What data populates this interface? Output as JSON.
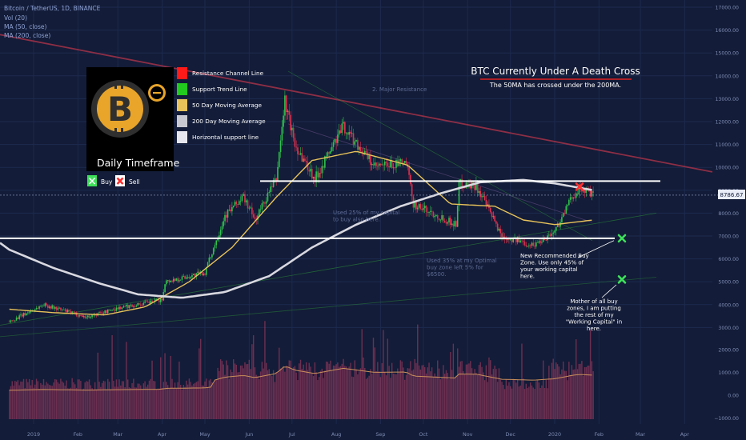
{
  "header": {
    "symbol_line": "Bitcoin / TetherUS, 1D, BINANCE",
    "indicators": [
      "Vol (20)",
      "MA (50, close)",
      "MA (200, close)"
    ]
  },
  "legend": {
    "logo_caption": "Daily Timeframe",
    "items": [
      {
        "label": "Resistance Channel Line",
        "color": "#ff1a1a"
      },
      {
        "label": "Support Trend Line",
        "color": "#22c91e"
      },
      {
        "label": "50 Day Moving Average",
        "color": "#e8c35a"
      },
      {
        "label": "200 Day Moving Average",
        "color": "#c8c8d0"
      },
      {
        "label": "Horizontal support line",
        "color": "#e6e6ee"
      }
    ],
    "buy_label": "Buy",
    "sell_label": "Sell"
  },
  "headline": {
    "title": "BTC Currently Under A Death Cross",
    "subtitle": "The 50MA has crossed under the 200MA."
  },
  "annotations": {
    "major_resistance": "2. Major Resistance",
    "used25": "Used 25% of my capital to buy also here.",
    "used35": "Used 35% at my Optimal buy zone left 5% for $6500.",
    "new_zone": "New Recommended Buy Zone. Use only 45% of your working capital here.",
    "mother_zone": "Mother of all buy zones, I am putting the rest of my \"Working Capital\" in here."
  },
  "price_label": "8786.67",
  "colors": {
    "background": "#131c38",
    "up": "#2fc34c",
    "down": "#e0304e",
    "ma50": "#e8c35a",
    "ma200": "#d8d8e0",
    "resistance": "#b8344a",
    "support_level": "#ffffff",
    "volume_ma": "#c98f5a",
    "volume_bar": "#b83f66",
    "buy_marker": "#3ee05a",
    "sell_marker": "#ff3030"
  },
  "chart_data": {
    "type": "candlestick",
    "y_axis": {
      "range": [
        2000,
        17000
      ],
      "ticks": [
        "17000.00",
        "16000.00",
        "15000.00",
        "14000.00",
        "13000.00",
        "12000.00",
        "11000.00",
        "10000.00",
        "9000.00",
        "8000.00",
        "7000.00",
        "6000.00",
        "5000.00",
        "4000.00",
        "3000.00"
      ]
    },
    "volume_axis": {
      "ticks": [
        "2000.00",
        "1000.00",
        "0.00",
        "−1000.00"
      ]
    },
    "x_axis": {
      "ticks": [
        "2019",
        "Feb",
        "Mar",
        "Apr",
        "May",
        "Jun",
        "Jul",
        "Aug",
        "Sep",
        "Oct",
        "Nov",
        "Dec",
        "2020",
        "Feb",
        "Mar",
        "Apr"
      ]
    },
    "price_keypoints": [
      [
        "2018-12-15",
        3250
      ],
      [
        "2019-01-08",
        4000
      ],
      [
        "2019-02-07",
        3450
      ],
      [
        "2019-03-01",
        3850
      ],
      [
        "2019-04-01",
        4200
      ],
      [
        "2019-04-03",
        5000
      ],
      [
        "2019-05-01",
        5400
      ],
      [
        "2019-05-15",
        7900
      ],
      [
        "2019-05-28",
        8700
      ],
      [
        "2019-06-05",
        7700
      ],
      [
        "2019-06-20",
        9500
      ],
      [
        "2019-06-26",
        12900
      ],
      [
        "2019-07-03",
        11000
      ],
      [
        "2019-07-17",
        9500
      ],
      [
        "2019-08-06",
        11800
      ],
      [
        "2019-08-28",
        10000
      ],
      [
        "2019-09-19",
        10200
      ],
      [
        "2019-09-24",
        8400
      ],
      [
        "2019-10-24",
        7500
      ],
      [
        "2019-10-26",
        9300
      ],
      [
        "2019-11-07",
        9200
      ],
      [
        "2019-11-25",
        7000
      ],
      [
        "2019-12-17",
        6600
      ],
      [
        "2020-01-01",
        7200
      ],
      [
        "2020-01-14",
        8800
      ],
      [
        "2020-01-19",
        9100
      ],
      [
        "2020-01-28",
        8786
      ]
    ],
    "series": [
      {
        "name": "MA (50, close)",
        "keypoints": [
          [
            "2018-12-15",
            3800
          ],
          [
            "2019-01-15",
            3650
          ],
          [
            "2019-02-20",
            3550
          ],
          [
            "2019-03-20",
            3900
          ],
          [
            "2019-04-20",
            5000
          ],
          [
            "2019-05-20",
            6500
          ],
          [
            "2019-06-20",
            8700
          ],
          [
            "2019-07-15",
            10300
          ],
          [
            "2019-08-15",
            10700
          ],
          [
            "2019-09-20",
            10100
          ],
          [
            "2019-10-20",
            8400
          ],
          [
            "2019-11-20",
            8300
          ],
          [
            "2019-12-10",
            7700
          ],
          [
            "2020-01-01",
            7500
          ],
          [
            "2020-01-28",
            7700
          ]
        ]
      },
      {
        "name": "MA (200, close)",
        "keypoints": [
          [
            "2018-12-15",
            6400
          ],
          [
            "2019-01-15",
            5600
          ],
          [
            "2019-02-15",
            4950
          ],
          [
            "2019-03-15",
            4450
          ],
          [
            "2019-04-15",
            4300
          ],
          [
            "2019-05-15",
            4550
          ],
          [
            "2019-06-15",
            5250
          ],
          [
            "2019-07-15",
            6500
          ],
          [
            "2019-08-15",
            7500
          ],
          [
            "2019-09-15",
            8300
          ],
          [
            "2019-10-15",
            8900
          ],
          [
            "2019-11-10",
            9350
          ],
          [
            "2019-12-10",
            9450
          ],
          [
            "2020-01-01",
            9300
          ],
          [
            "2020-01-28",
            9000
          ]
        ]
      }
    ],
    "horizontal_levels": [
      9400,
      6900
    ],
    "buy_markers": [
      6900,
      5100
    ],
    "sell_marker": 9150
  }
}
